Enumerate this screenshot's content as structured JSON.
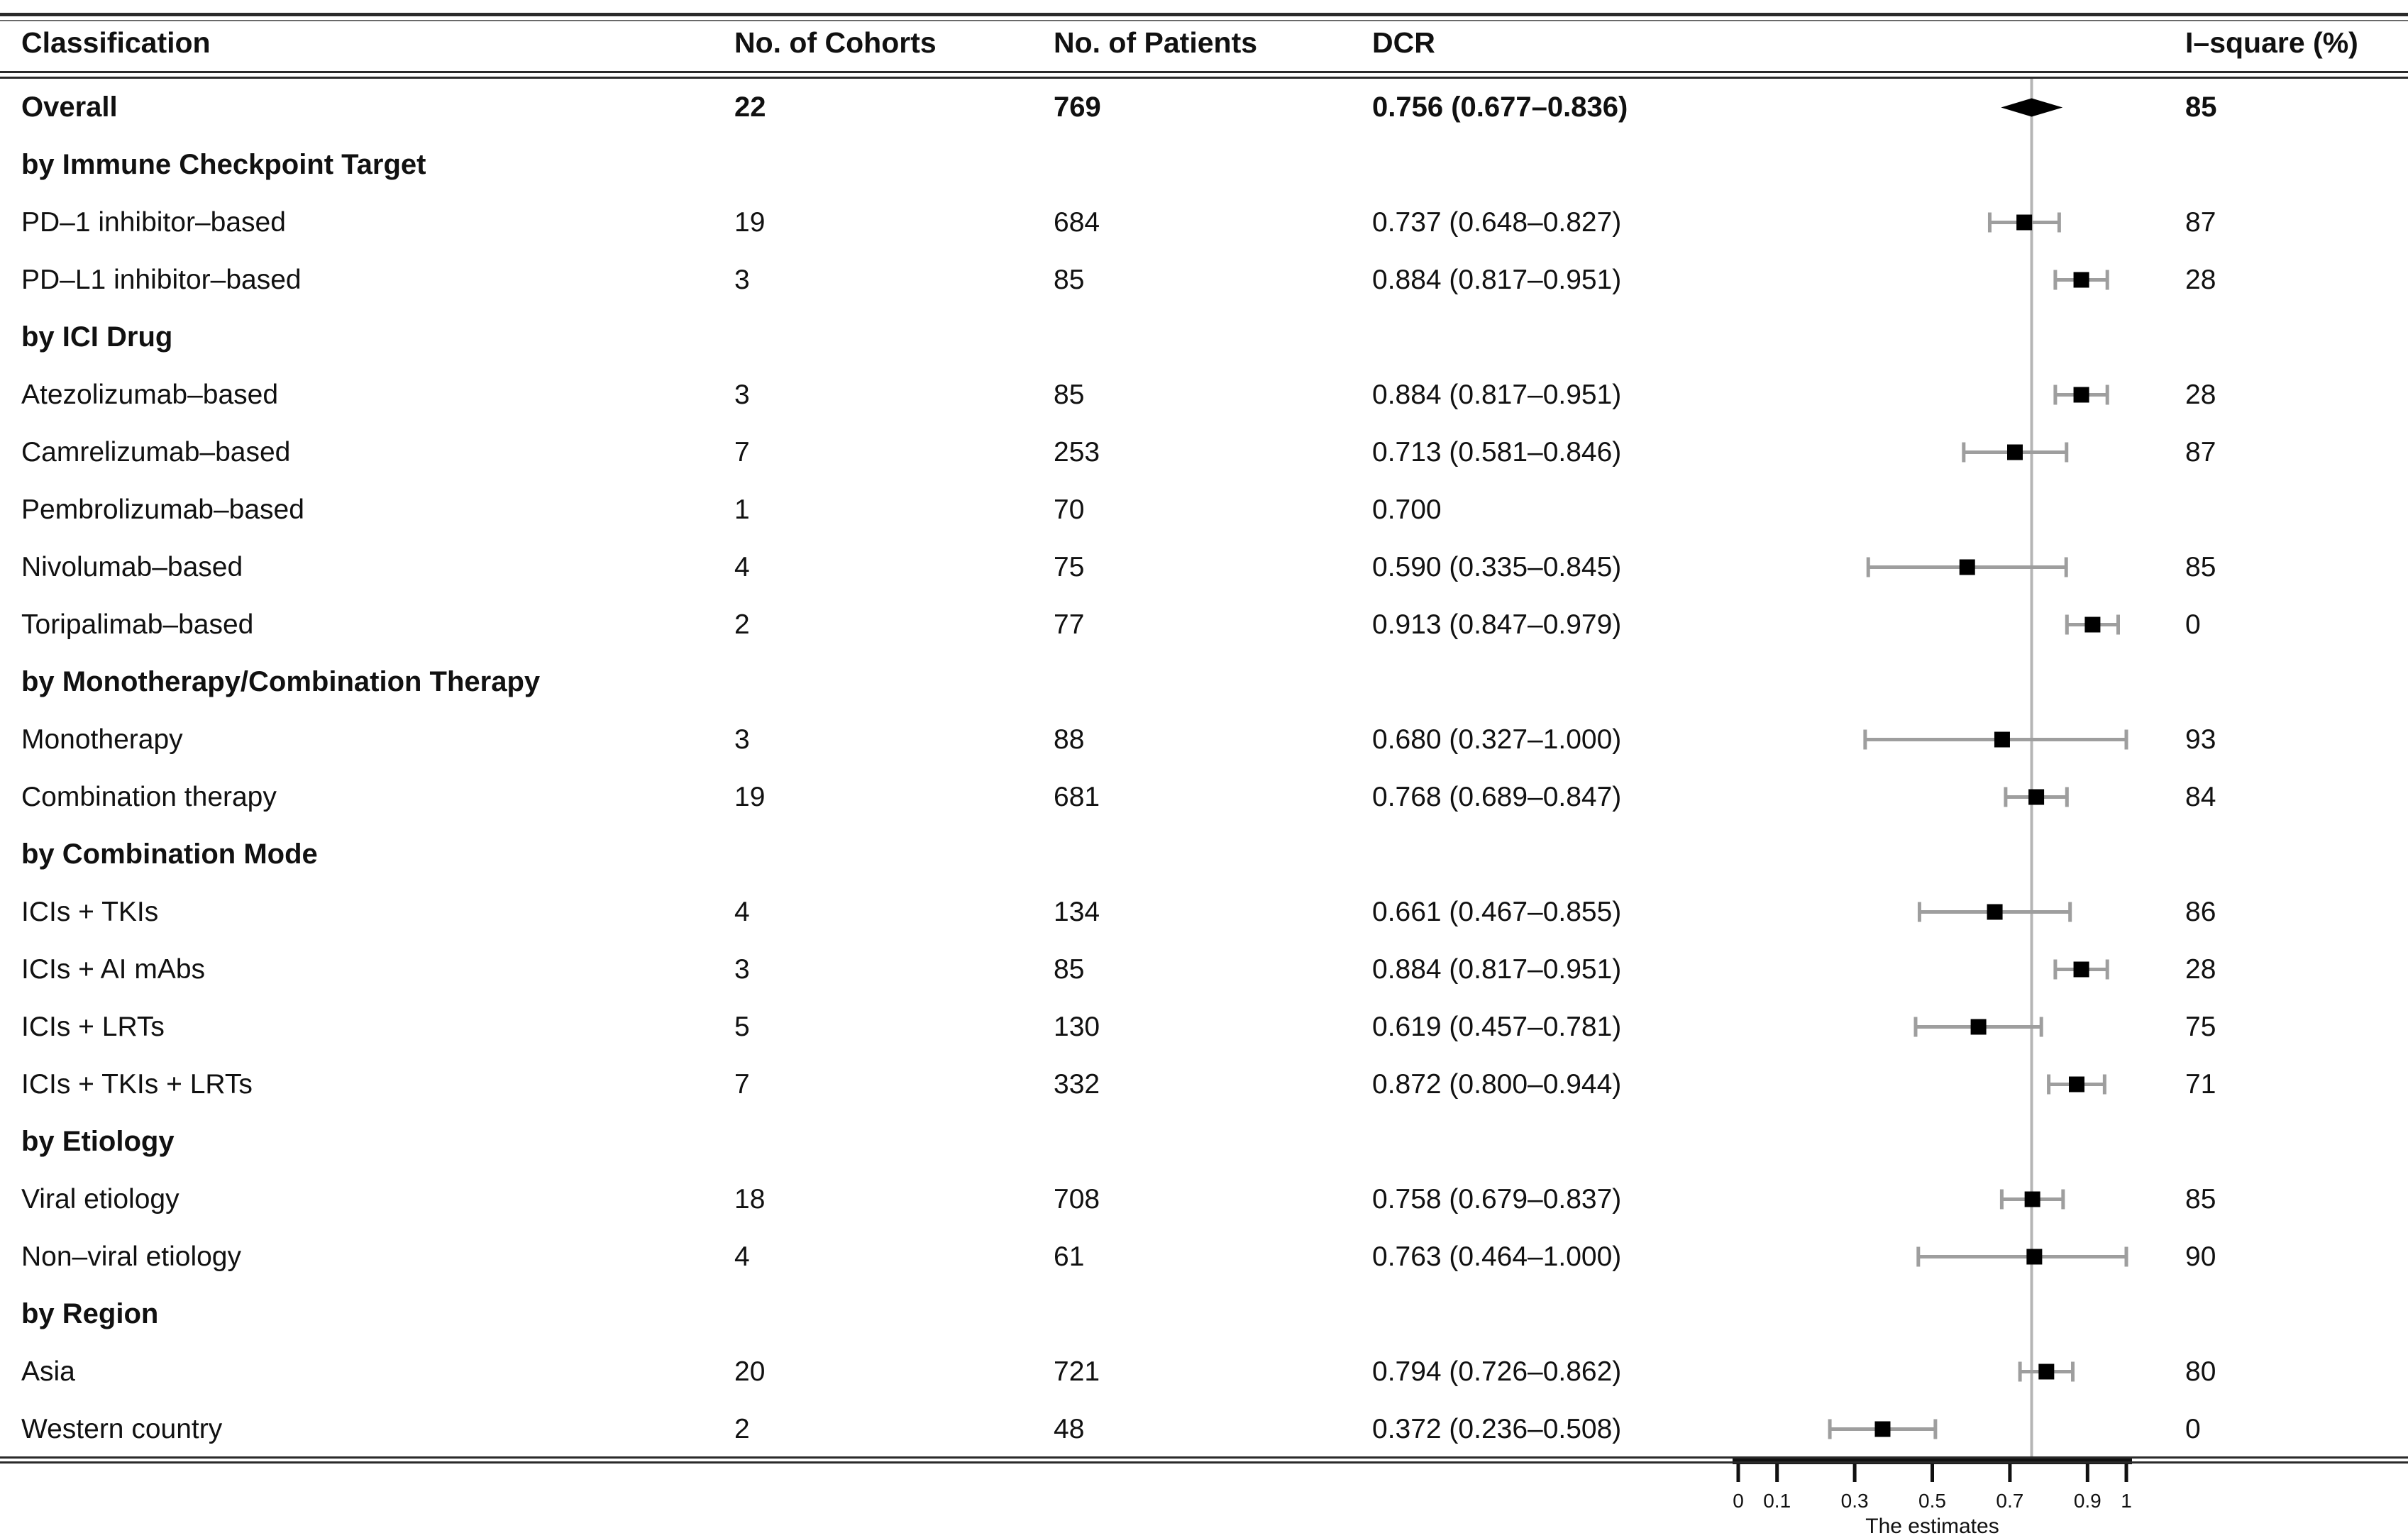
{
  "table": {
    "columns": [
      {
        "key": "label",
        "label": "Classification"
      },
      {
        "key": "cohorts",
        "label": "No. of Cohorts"
      },
      {
        "key": "patients",
        "label": "No. of Patients"
      },
      {
        "key": "dcr",
        "label": "DCR"
      },
      {
        "key": "i2",
        "label": "I–square (%)"
      }
    ]
  },
  "colors": {
    "text": "#111111",
    "rule": "#2a2a2a",
    "error_bar": "#9e9e9e",
    "reference_line": "#b5b5b5",
    "marker": "#000000",
    "axis": "#111111"
  },
  "chart_data": {
    "type": "forest",
    "xlabel": "The estimates",
    "xlim": [
      0,
      1
    ],
    "xticks": [
      {
        "v": 0,
        "label": "0"
      },
      {
        "v": 0.1,
        "label": "0.1"
      },
      {
        "v": 0.3,
        "label": "0.3"
      },
      {
        "v": 0.5,
        "label": "0.5"
      },
      {
        "v": 0.7,
        "label": "0.7"
      },
      {
        "v": 0.9,
        "label": "0.9"
      },
      {
        "v": 1,
        "label": "1"
      }
    ],
    "reference_line": 0.756,
    "rows": [
      {
        "kind": "summary",
        "label": "Overall",
        "cohorts": "22",
        "patients": "769",
        "dcr": "0.756 (0.677–0.836)",
        "est": 0.756,
        "lo": 0.677,
        "hi": 0.836,
        "i2": "85"
      },
      {
        "kind": "section",
        "label": "by Immune Checkpoint Target"
      },
      {
        "kind": "study",
        "label": "PD–1 inhibitor–based",
        "cohorts": "19",
        "patients": "684",
        "dcr": "0.737 (0.648–0.827)",
        "est": 0.737,
        "lo": 0.648,
        "hi": 0.827,
        "i2": "87"
      },
      {
        "kind": "study",
        "label": "PD–L1 inhibitor–based",
        "cohorts": "3",
        "patients": "85",
        "dcr": "0.884 (0.817–0.951)",
        "est": 0.884,
        "lo": 0.817,
        "hi": 0.951,
        "i2": "28"
      },
      {
        "kind": "section",
        "label": "by ICI Drug"
      },
      {
        "kind": "study",
        "label": "Atezolizumab–based",
        "cohorts": "3",
        "patients": "85",
        "dcr": "0.884 (0.817–0.951)",
        "est": 0.884,
        "lo": 0.817,
        "hi": 0.951,
        "i2": "28"
      },
      {
        "kind": "study",
        "label": "Camrelizumab–based",
        "cohorts": "7",
        "patients": "253",
        "dcr": "0.713 (0.581–0.846)",
        "est": 0.713,
        "lo": 0.581,
        "hi": 0.846,
        "i2": "87"
      },
      {
        "kind": "study",
        "label": "Pembrolizumab–based",
        "cohorts": "1",
        "patients": "70",
        "dcr": "0.700",
        "est": 0.7,
        "lo": null,
        "hi": null,
        "i2": ""
      },
      {
        "kind": "study",
        "label": "Nivolumab–based",
        "cohorts": "4",
        "patients": "75",
        "dcr": "0.590 (0.335–0.845)",
        "est": 0.59,
        "lo": 0.335,
        "hi": 0.845,
        "i2": "85"
      },
      {
        "kind": "study",
        "label": "Toripalimab–based",
        "cohorts": "2",
        "patients": "77",
        "dcr": "0.913 (0.847–0.979)",
        "est": 0.913,
        "lo": 0.847,
        "hi": 0.979,
        "i2": "0"
      },
      {
        "kind": "section",
        "label": "by Monotherapy/Combination Therapy"
      },
      {
        "kind": "study",
        "label": "Monotherapy",
        "cohorts": "3",
        "patients": "88",
        "dcr": "0.680 (0.327–1.000)",
        "est": 0.68,
        "lo": 0.327,
        "hi": 1.0,
        "i2": "93"
      },
      {
        "kind": "study",
        "label": "Combination therapy",
        "cohorts": "19",
        "patients": "681",
        "dcr": "0.768 (0.689–0.847)",
        "est": 0.768,
        "lo": 0.689,
        "hi": 0.847,
        "i2": "84"
      },
      {
        "kind": "section",
        "label": "by Combination Mode"
      },
      {
        "kind": "study",
        "label": "ICIs + TKIs",
        "cohorts": "4",
        "patients": "134",
        "dcr": "0.661 (0.467–0.855)",
        "est": 0.661,
        "lo": 0.467,
        "hi": 0.855,
        "i2": "86"
      },
      {
        "kind": "study",
        "label": "ICIs + AI mAbs",
        "cohorts": "3",
        "patients": "85",
        "dcr": "0.884 (0.817–0.951)",
        "est": 0.884,
        "lo": 0.817,
        "hi": 0.951,
        "i2": "28"
      },
      {
        "kind": "study",
        "label": "ICIs + LRTs",
        "cohorts": "5",
        "patients": "130",
        "dcr": "0.619 (0.457–0.781)",
        "est": 0.619,
        "lo": 0.457,
        "hi": 0.781,
        "i2": "75"
      },
      {
        "kind": "study",
        "label": "ICIs + TKIs + LRTs",
        "cohorts": "7",
        "patients": "332",
        "dcr": "0.872 (0.800–0.944)",
        "est": 0.872,
        "lo": 0.8,
        "hi": 0.944,
        "i2": "71"
      },
      {
        "kind": "section",
        "label": "by Etiology"
      },
      {
        "kind": "study",
        "label": "Viral etiology",
        "cohorts": "18",
        "patients": "708",
        "dcr": "0.758 (0.679–0.837)",
        "est": 0.758,
        "lo": 0.679,
        "hi": 0.837,
        "i2": "85"
      },
      {
        "kind": "study",
        "label": "Non–viral etiology",
        "cohorts": "4",
        "patients": "61",
        "dcr": "0.763 (0.464–1.000)",
        "est": 0.763,
        "lo": 0.464,
        "hi": 1.0,
        "i2": "90"
      },
      {
        "kind": "section",
        "label": "by Region"
      },
      {
        "kind": "study",
        "label": "Asia",
        "cohorts": "20",
        "patients": "721",
        "dcr": "0.794 (0.726–0.862)",
        "est": 0.794,
        "lo": 0.726,
        "hi": 0.862,
        "i2": "80"
      },
      {
        "kind": "study",
        "label": "Western country",
        "cohorts": "2",
        "patients": "48",
        "dcr": "0.372 (0.236–0.508)",
        "est": 0.372,
        "lo": 0.236,
        "hi": 0.508,
        "i2": "0"
      }
    ]
  }
}
